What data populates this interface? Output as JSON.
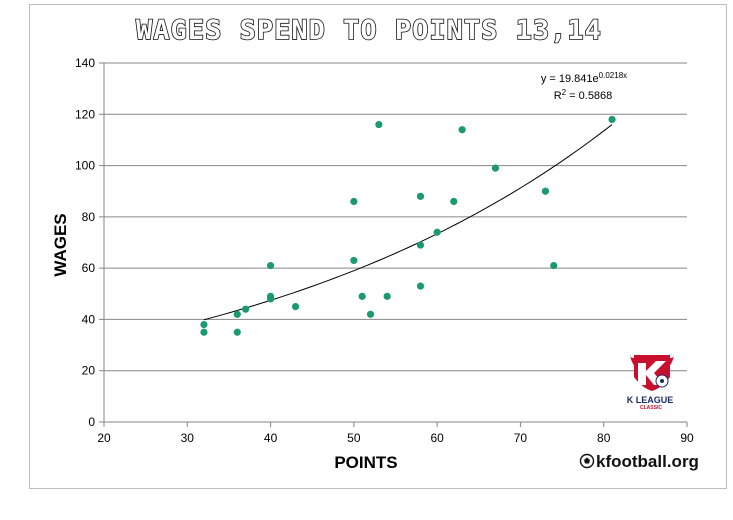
{
  "chart_data": {
    "type": "scatter",
    "title": "WAGES SPEND TO POINTS 13,14",
    "xlabel": "POINTS",
    "ylabel": "WAGES",
    "xlim": [
      20,
      90
    ],
    "ylim": [
      0,
      140
    ],
    "x_ticks": [
      "20",
      "30",
      "40",
      "50",
      "60",
      "70",
      "80",
      "90"
    ],
    "y_ticks": [
      "0",
      "20",
      "40",
      "60",
      "80",
      "100",
      "120",
      "140"
    ],
    "grid": true,
    "points": [
      {
        "x": 32,
        "y": 35
      },
      {
        "x": 32,
        "y": 38
      },
      {
        "x": 36,
        "y": 35
      },
      {
        "x": 36,
        "y": 42
      },
      {
        "x": 37,
        "y": 44
      },
      {
        "x": 40,
        "y": 48
      },
      {
        "x": 40,
        "y": 49
      },
      {
        "x": 40,
        "y": 61
      },
      {
        "x": 43,
        "y": 45
      },
      {
        "x": 50,
        "y": 86
      },
      {
        "x": 50,
        "y": 63
      },
      {
        "x": 51,
        "y": 49
      },
      {
        "x": 52,
        "y": 42
      },
      {
        "x": 53,
        "y": 116
      },
      {
        "x": 54,
        "y": 49
      },
      {
        "x": 58,
        "y": 53
      },
      {
        "x": 58,
        "y": 69
      },
      {
        "x": 58,
        "y": 88
      },
      {
        "x": 60,
        "y": 74
      },
      {
        "x": 62,
        "y": 86
      },
      {
        "x": 63,
        "y": 114
      },
      {
        "x": 67,
        "y": 99
      },
      {
        "x": 73,
        "y": 90
      },
      {
        "x": 74,
        "y": 61
      },
      {
        "x": 81,
        "y": 118
      }
    ],
    "trendline": {
      "type": "exponential",
      "coefficient": 19.841,
      "rate": 0.0218,
      "x_range": [
        32,
        81
      ],
      "equation_base": "y = 19.841e",
      "equation_exp": "0.0218x",
      "r2_base": "R",
      "r2_sup": "2",
      "r2_value": " = 0.5868"
    },
    "point_color": "#1a9a6e"
  },
  "branding": {
    "site": "kfootball.org",
    "league_name": "K LEAGUE",
    "league_sub": "CLASSIC"
  },
  "colors": {
    "logo_red": "#c8102e",
    "logo_navy": "#1a2a6c"
  }
}
